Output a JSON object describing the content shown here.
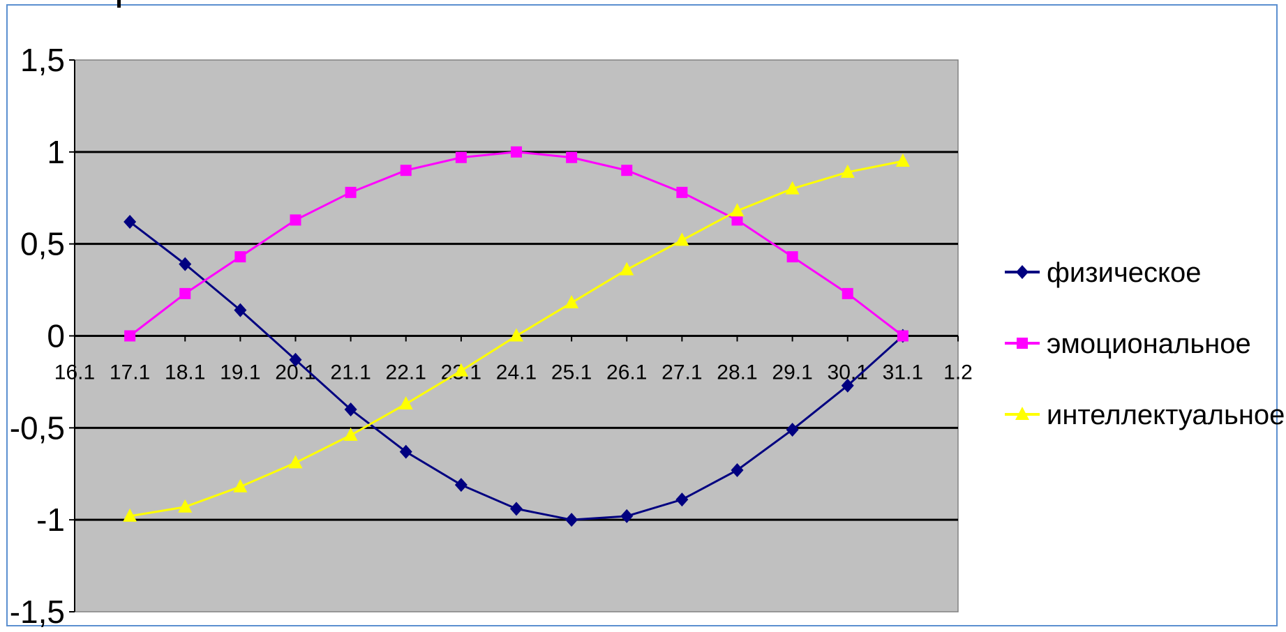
{
  "chart_data": {
    "type": "line",
    "title": "",
    "xlabel": "",
    "ylabel": "",
    "categories": [
      "16.1",
      "17.1",
      "18.1",
      "19.1",
      "20.1",
      "21.1",
      "22.1",
      "23.1",
      "24.1",
      "25.1",
      "26.1",
      "27.1",
      "28.1",
      "29.1",
      "30.1",
      "31.1",
      "1.2"
    ],
    "ylim": [
      -1.5,
      1.5
    ],
    "yticks": [
      "1,5",
      "1",
      "0,5",
      "0",
      "-0,5",
      "-1",
      "-1,5"
    ],
    "grid": "horizontal",
    "plot_background": "#c0c0c0",
    "legend_position": "right",
    "series": [
      {
        "name": "физическое",
        "color": "#000080",
        "marker": "diamond",
        "values": [
          null,
          0.62,
          0.39,
          0.14,
          -0.13,
          -0.4,
          -0.63,
          -0.81,
          -0.94,
          -1.0,
          -0.98,
          -0.89,
          -0.73,
          -0.51,
          -0.27,
          0.0,
          null
        ]
      },
      {
        "name": "эмоциональное",
        "color": "#ff00ff",
        "marker": "square",
        "values": [
          null,
          0.0,
          0.23,
          0.43,
          0.63,
          0.78,
          0.9,
          0.97,
          1.0,
          0.97,
          0.9,
          0.78,
          0.63,
          0.43,
          0.23,
          0.0,
          null
        ]
      },
      {
        "name": "интеллектуальное",
        "color": "#ffff00",
        "marker": "triangle",
        "values": [
          null,
          -0.98,
          -0.93,
          -0.82,
          -0.69,
          -0.54,
          -0.37,
          -0.19,
          0.0,
          0.18,
          0.36,
          0.52,
          0.68,
          0.8,
          0.89,
          0.95,
          null
        ]
      }
    ]
  }
}
